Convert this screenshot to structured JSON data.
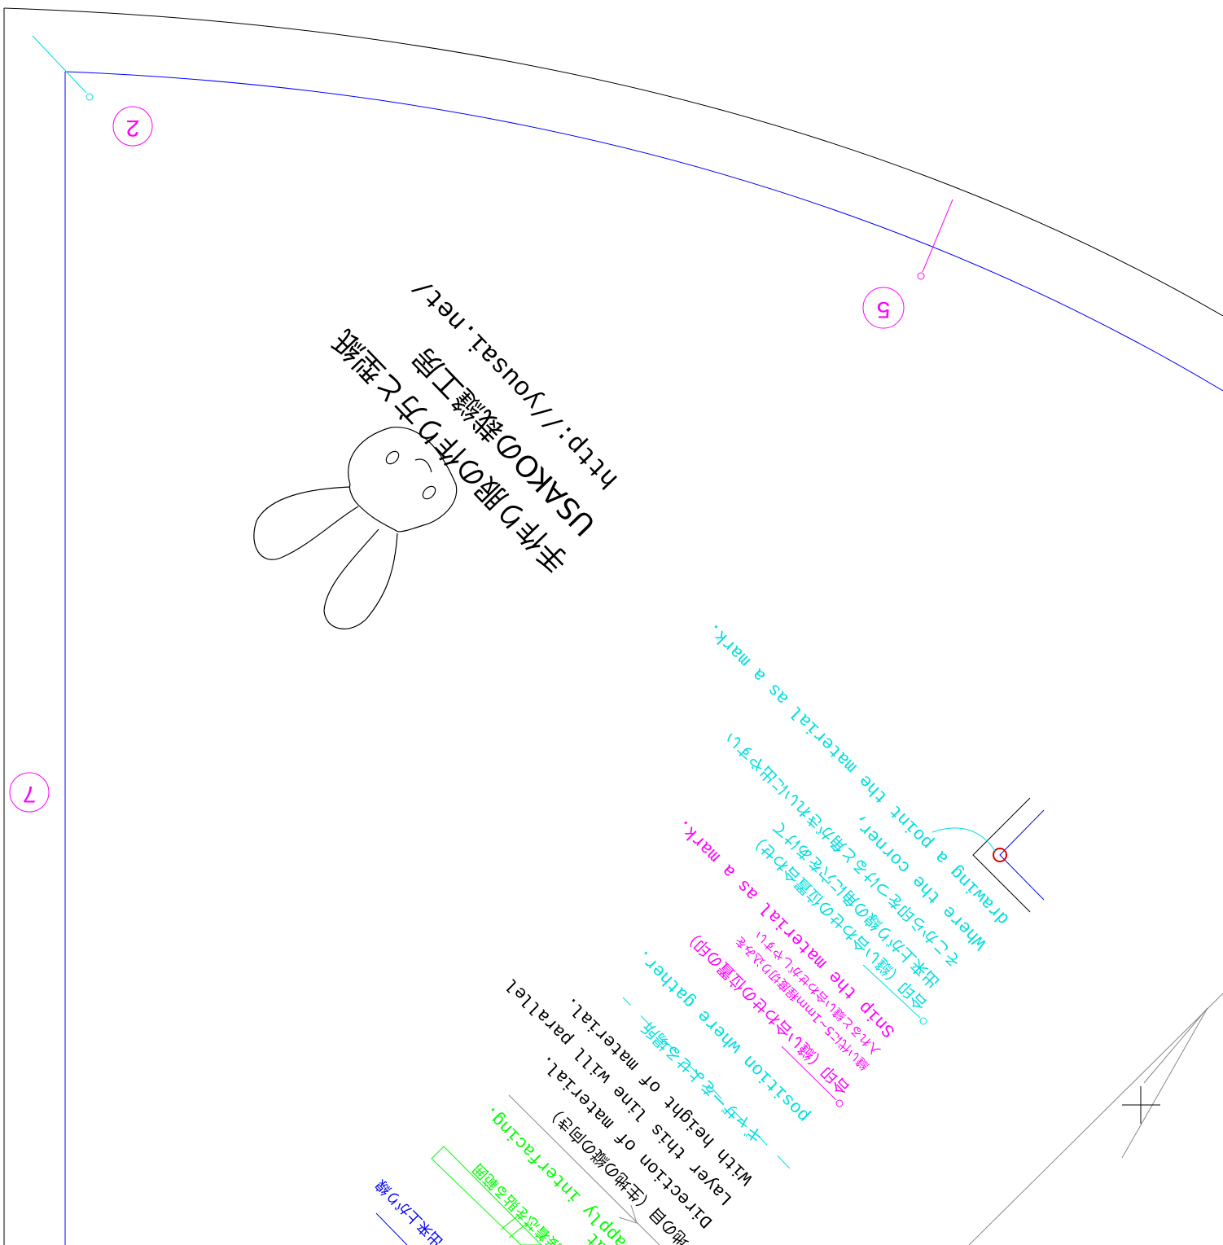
{
  "header": {
    "lines": [
      "手作り服の作り方と型紙",
      "USAKOの裁縫工房",
      "http://yousai.net/"
    ]
  },
  "piece_numbers": [
    "2",
    "5",
    "7"
  ],
  "corner_note": [
    "drawing a point the material as a mark.",
    "Where the corner,",
    "そこから印をつけると角がきれいに出やすい",
    "出来上がり線の角に穴をあけて",
    "合印（縫い合わせの位置合わせ）"
  ],
  "snip_note": [
    "Snip the material as a mark.",
    "縫い代に5~1mm程度切り込みを",
    "入れると縫い合わせがしやすい",
    "合印（縫い合わせの位置の印）"
  ],
  "gather_note": [
    "position where gather.",
    "ギャザーをよせる場所"
  ],
  "grain_note": [
    "With height of material.",
    "Layer this line will parallel",
    "Direction of material.",
    "地の目（生地の縦の向き）"
  ],
  "interfacing_note": [
    "apply interfacing.",
    "that",
    "接着芯を貼る範囲"
  ],
  "finish_note": [
    "出来上がり線"
  ]
}
